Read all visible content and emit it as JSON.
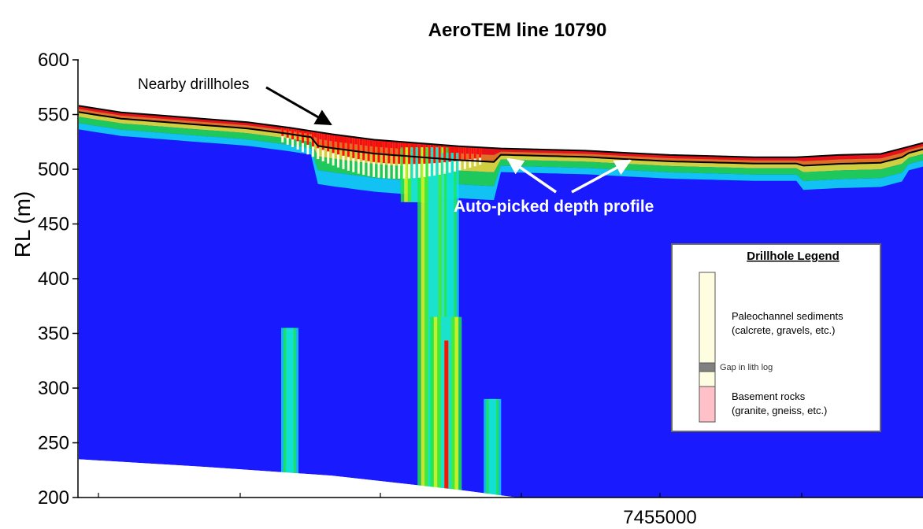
{
  "chart_data": {
    "type": "heatmap",
    "title": "AeroTEM line 10790",
    "ylabel": "RL (m)",
    "xlabel": "",
    "ylim": [
      200,
      600
    ],
    "yticks": [
      "600",
      "550",
      "500",
      "450",
      "400",
      "350",
      "300",
      "250",
      "200"
    ],
    "xtick_labels": [
      "7455000"
    ],
    "grid": false,
    "colors": {
      "background_section": "#1a1aff",
      "cyan": "#10e0f0",
      "green": "#20e840",
      "yellow": "#f0f020",
      "orange": "#ff8000",
      "red": "#ff1000",
      "drillhole_sediment": "#fffde0",
      "drillhole_basement": "#ffc0c8"
    },
    "surface_profile": {
      "x": [
        0,
        0.05,
        0.1,
        0.15,
        0.2,
        0.25,
        0.3,
        0.35,
        0.4,
        0.45,
        0.5,
        0.55,
        0.6,
        0.65,
        0.7,
        0.75,
        0.8,
        0.85,
        0.9,
        0.95,
        1.0
      ],
      "rl": [
        558,
        552,
        549,
        546,
        543,
        538,
        532,
        527,
        524,
        521,
        519,
        518,
        517,
        515,
        513,
        512,
        511,
        511,
        513,
        514,
        524
      ]
    },
    "bottom_profile": {
      "x": [
        0,
        0.15,
        0.3,
        0.45,
        0.52
      ],
      "rl": [
        235,
        228,
        220,
        207,
        200
      ]
    },
    "conductors": [
      {
        "x": 0.4,
        "rl_top": 520,
        "rl_bottom": 470,
        "strength": "high"
      },
      {
        "x": 0.42,
        "rl_top": 520,
        "rl_bottom": 200,
        "strength": "high"
      },
      {
        "x": 0.44,
        "rl_top": 515,
        "rl_bottom": 205,
        "strength": "medium"
      },
      {
        "x": 0.25,
        "rl_top": 355,
        "rl_bottom": 212,
        "strength": "medium"
      },
      {
        "x": 0.435,
        "rl_top": 365,
        "rl_bottom": 203,
        "strength": "high"
      },
      {
        "x": 0.49,
        "rl_top": 290,
        "rl_bottom": 200,
        "strength": "medium"
      }
    ],
    "annotations": [
      {
        "label": "Nearby drillholes"
      },
      {
        "label": "Auto-picked depth profile"
      }
    ],
    "legend": {
      "title": "Drillhole Legend",
      "placement": "bottom-right",
      "items": [
        {
          "label_line1": "Paleochannel sediments",
          "label_line2": "(calcrete, gravels, etc.)",
          "color": "#fffde0"
        },
        {
          "label_line1": "Gap in lith log",
          "label_line2": "",
          "color": "#808080"
        },
        {
          "label_line1": "Basement rocks",
          "label_line2": "(granite, gneiss, etc.)",
          "color": "#ffc0c8"
        }
      ]
    }
  }
}
